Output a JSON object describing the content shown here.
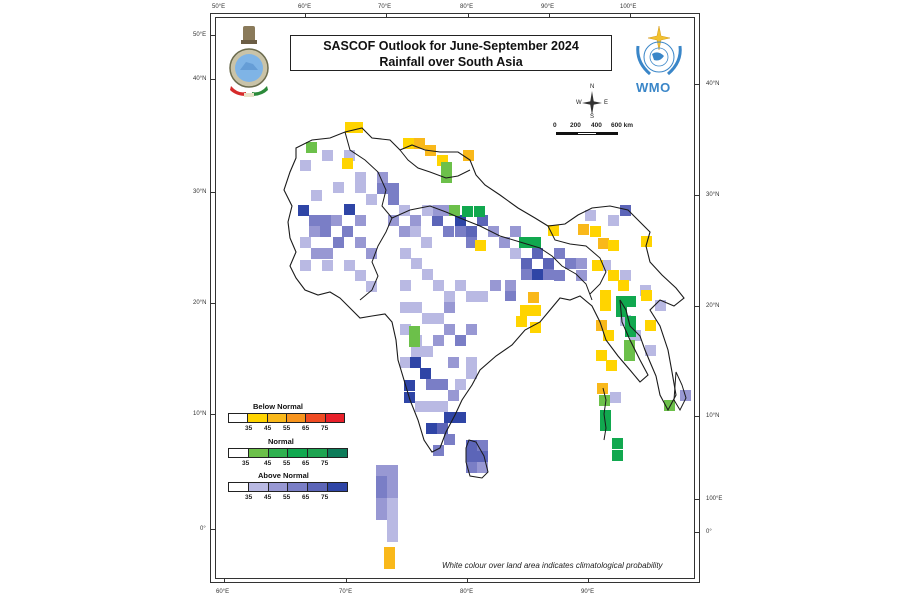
{
  "title": {
    "line1": "SASCOF Outlook for June-September 2024",
    "line2": "Rainfall over South Asia"
  },
  "logos": {
    "left": "imd-emblem-logo",
    "right_text": "WMO"
  },
  "axes": {
    "top": [
      "50°E",
      "60°E",
      "70°E",
      "80°E",
      "90°E",
      "100°E"
    ],
    "bottom": [
      "60°E",
      "70°E",
      "80°E",
      "90°E"
    ],
    "left": [
      "50°E",
      "40°N",
      "30°N",
      "20°N",
      "10°N",
      "0°"
    ],
    "right": [
      "40°N",
      "30°N",
      "20°N",
      "10°N",
      "100°E",
      "0°"
    ]
  },
  "compass": {
    "n": "N",
    "s": "S",
    "e": "E",
    "w": "W"
  },
  "scale_bar": {
    "labels": [
      "0",
      "200",
      "400",
      "600 km"
    ]
  },
  "legend": {
    "below_normal": {
      "title": "Below Normal",
      "ticks": [
        "35",
        "45",
        "55",
        "65",
        "75"
      ],
      "colors": [
        "#ffffff",
        "#ffd400",
        "#f9b81a",
        "#f7941d",
        "#ef4b23",
        "#e8202a"
      ]
    },
    "normal": {
      "title": "Normal",
      "ticks": [
        "35",
        "45",
        "55",
        "65",
        "75"
      ],
      "colors": [
        "#ffffff",
        "#6cc04a",
        "#2fb14f",
        "#11a84f",
        "#1ea451",
        "#0e7c5a"
      ]
    },
    "above_normal": {
      "title": "Above Normal",
      "ticks": [
        "35",
        "45",
        "55",
        "65",
        "75"
      ],
      "colors": [
        "#ffffff",
        "#b9b9e3",
        "#9898d3",
        "#7a7ec6",
        "#5c65b8",
        "#2f45a6"
      ]
    }
  },
  "footnote": "White colour over land area indicates climatological probability"
}
